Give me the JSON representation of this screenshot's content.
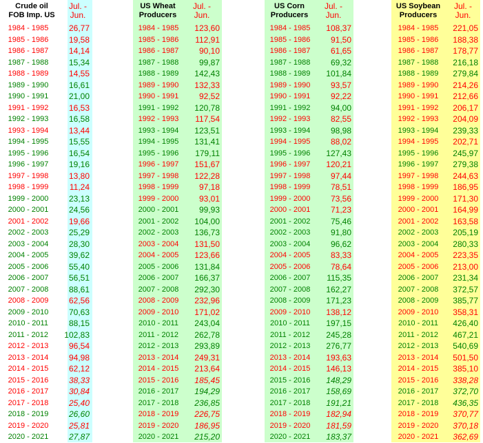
{
  "years": [
    "1984 - 1985",
    "1985 - 1986",
    "1986 - 1987",
    "1987 - 1988",
    "1988 - 1989",
    "1989 - 1990",
    "1990 - 1991",
    "1991 - 1992",
    "1992 - 1993",
    "1993 - 1994",
    "1994 - 1995",
    "1995 - 1996",
    "1996 - 1997",
    "1997 - 1998",
    "1998 - 1999",
    "1999 - 2000",
    "2000 - 2001",
    "2001 - 2002",
    "2002 - 2003",
    "2003 - 2004",
    "2004 - 2005",
    "2005 - 2006",
    "2006 - 2007",
    "2007 - 2008",
    "2008 - 2009",
    "2009 - 2010",
    "2010 - 2011",
    "2011 - 2012",
    "2012 - 2013",
    "2013 - 2014",
    "2014 - 2015",
    "2015 - 2016",
    "2016 - 2017",
    "2017 - 2018",
    "2018 - 2019",
    "2019 - 2020",
    "2020 - 2021"
  ],
  "colors": {
    "up": "#008000",
    "down": "#ff0000",
    "cyan": "#ccffff",
    "green": "#ccffcc",
    "yellow": "#ffff99"
  },
  "italic_from_index": 31,
  "tables": [
    {
      "id": "crude-oil",
      "header_line1": "Crude oil",
      "header_line2": "FOB Imp. US",
      "period_line1": "Jul. -",
      "period_line2": "Jun.",
      "values": [
        "26,77",
        "19,58",
        "14,14",
        "15,34",
        "14,55",
        "16,61",
        "21,00",
        "16,53",
        "16,58",
        "13,44",
        "15,55",
        "16,54",
        "19,16",
        "13,80",
        "11,24",
        "23,13",
        "24,56",
        "19,66",
        "25,29",
        "28,30",
        "39,62",
        "55,40",
        "56,51",
        "88,61",
        "62,56",
        "70,63",
        "88,15",
        "102,83",
        "96,54",
        "94,98",
        "62,12",
        "38,33",
        "30,84",
        "25,40",
        "26,60",
        "25,81",
        "27,87"
      ],
      "trend": [
        "d",
        "d",
        "d",
        "u",
        "d",
        "u",
        "u",
        "d",
        "u",
        "d",
        "u",
        "u",
        "u",
        "d",
        "d",
        "u",
        "u",
        "d",
        "u",
        "u",
        "u",
        "u",
        "u",
        "u",
        "d",
        "u",
        "u",
        "u",
        "d",
        "d",
        "d",
        "d",
        "d",
        "d",
        "u",
        "d",
        "u"
      ]
    },
    {
      "id": "us-wheat",
      "header_line1": "US Wheat",
      "header_line2": "Producers",
      "period_line1": "Jul. -",
      "period_line2": "Jun.",
      "values": [
        "123,60",
        "112,91",
        "90,10",
        "99,87",
        "142,43",
        "132,33",
        "92,52",
        "120,78",
        "117,54",
        "123,51",
        "131,41",
        "179,11",
        "151,67",
        "122,28",
        "97,18",
        "93,01",
        "99,93",
        "104,00",
        "136,73",
        "131,50",
        "123,66",
        "131,84",
        "166,37",
        "292,30",
        "232,96",
        "171,02",
        "243,04",
        "262,78",
        "293,89",
        "249,31",
        "213,64",
        "185,45",
        "194,29",
        "236,85",
        "226,75",
        "186,95",
        "215,20"
      ],
      "trend": [
        "d",
        "d",
        "d",
        "u",
        "u",
        "d",
        "d",
        "u",
        "d",
        "u",
        "u",
        "u",
        "d",
        "d",
        "d",
        "d",
        "u",
        "u",
        "u",
        "d",
        "d",
        "u",
        "u",
        "u",
        "d",
        "d",
        "u",
        "u",
        "u",
        "d",
        "d",
        "d",
        "u",
        "u",
        "d",
        "d",
        "u"
      ]
    },
    {
      "id": "us-corn",
      "header_line1": "US Corn",
      "header_line2": "Producers",
      "period_line1": "Jul. -",
      "period_line2": "Jun.",
      "values": [
        "108,37",
        "91,50",
        "61,65",
        "69,32",
        "101,84",
        "93,57",
        "92,22",
        "94,00",
        "82,55",
        "98,98",
        "88,02",
        "127,43",
        "120,21",
        "97,44",
        "78,51",
        "73,56",
        "71,23",
        "75,46",
        "91,80",
        "96,62",
        "83,33",
        "78,64",
        "115,35",
        "162,27",
        "171,23",
        "138,12",
        "197,15",
        "245,28",
        "276,77",
        "193,63",
        "146,13",
        "148,29",
        "158,69",
        "191,21",
        "182,94",
        "181,59",
        "183,37"
      ],
      "trend": [
        "d",
        "d",
        "d",
        "u",
        "u",
        "d",
        "d",
        "u",
        "d",
        "u",
        "d",
        "u",
        "d",
        "d",
        "d",
        "d",
        "d",
        "u",
        "u",
        "u",
        "d",
        "d",
        "u",
        "u",
        "u",
        "d",
        "u",
        "u",
        "u",
        "d",
        "d",
        "u",
        "u",
        "u",
        "d",
        "d",
        "u"
      ]
    },
    {
      "id": "us-soybean",
      "header_line1": "US Soybean",
      "header_line2": "Producers",
      "period_line1": "Jul. -",
      "period_line2": "Jun.",
      "values": [
        "221,05",
        "188,38",
        "178,77",
        "216,18",
        "279,84",
        "214,26",
        "212,66",
        "206,17",
        "204,09",
        "239,33",
        "202,71",
        "245,97",
        "279,38",
        "244,63",
        "186,95",
        "171,30",
        "164,99",
        "163,58",
        "205,19",
        "280,33",
        "223,35",
        "213,00",
        "231,34",
        "372,57",
        "385,77",
        "358,31",
        "426,40",
        "467,21",
        "540,69",
        "501,50",
        "385,10",
        "338,28",
        "372,70",
        "436,35",
        "370,77",
        "370,18",
        "362,69"
      ],
      "trend": [
        "d",
        "d",
        "d",
        "u",
        "u",
        "d",
        "d",
        "d",
        "d",
        "u",
        "d",
        "u",
        "u",
        "d",
        "d",
        "d",
        "d",
        "d",
        "u",
        "u",
        "d",
        "d",
        "u",
        "u",
        "u",
        "d",
        "u",
        "u",
        "u",
        "d",
        "d",
        "d",
        "u",
        "u",
        "d",
        "d",
        "d"
      ]
    }
  ]
}
